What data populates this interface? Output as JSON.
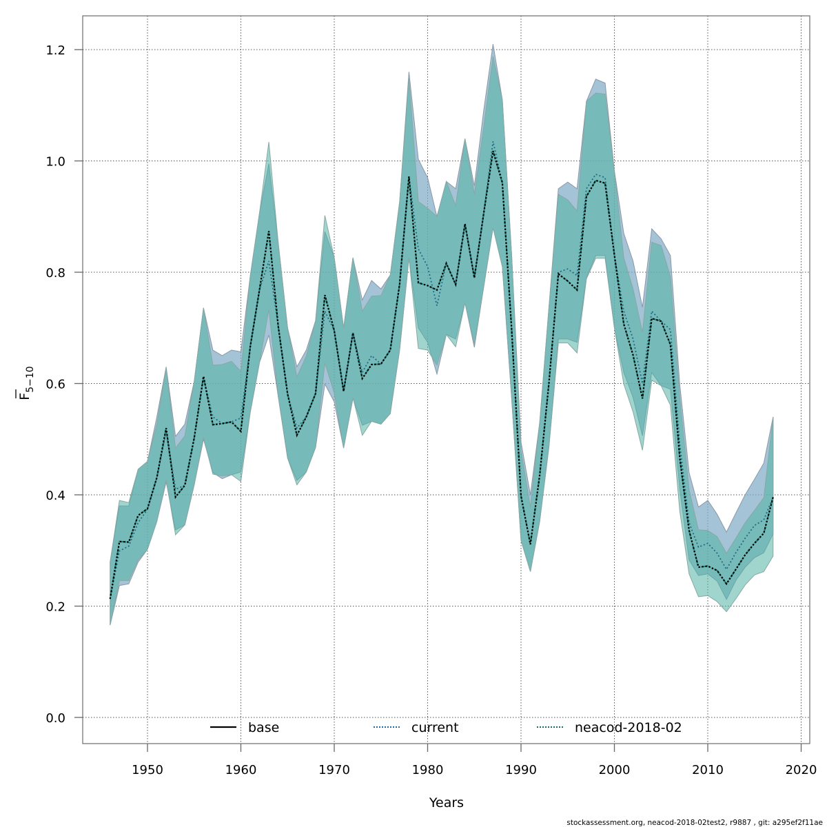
{
  "chart_data": {
    "type": "line",
    "title": "",
    "xlabel": "Years",
    "ylabel_main": "F",
    "ylabel_sub": "5−10",
    "xlim": [
      1943,
      2021
    ],
    "ylim": [
      -0.05,
      1.26
    ],
    "x_ticks": [
      1950,
      1960,
      1970,
      1980,
      1990,
      2000,
      2010,
      2020
    ],
    "x_tick_labels": [
      "1950",
      "1960",
      "1970",
      "1980",
      "1990",
      "2000",
      "2010",
      "2020"
    ],
    "y_ticks": [
      0.0,
      0.2,
      0.4,
      0.6,
      0.8,
      1.0,
      1.2
    ],
    "y_tick_labels": [
      "0.0",
      "0.2",
      "0.4",
      "0.6",
      "0.8",
      "1.0",
      "1.2"
    ],
    "grid": true,
    "legend_position": "bottom",
    "years": [
      1946,
      1947,
      1948,
      1949,
      1950,
      1951,
      1952,
      1953,
      1954,
      1955,
      1956,
      1957,
      1958,
      1959,
      1960,
      1961,
      1962,
      1963,
      1964,
      1965,
      1966,
      1967,
      1968,
      1969,
      1970,
      1971,
      1972,
      1973,
      1974,
      1975,
      1976,
      1977,
      1978,
      1979,
      1980,
      1981,
      1982,
      1983,
      1984,
      1985,
      1986,
      1987,
      1988,
      1989,
      1990,
      1991,
      1992,
      1993,
      1994,
      1995,
      1996,
      1997,
      1998,
      1999,
      2000,
      2001,
      2002,
      2003,
      2004,
      2005,
      2006,
      2007,
      2008,
      2009,
      2010,
      2011,
      2012,
      2013,
      2014,
      2015,
      2016,
      2017
    ],
    "series": [
      {
        "name": "base",
        "color": "#000000",
        "dash": "solid",
        "values": [
          0.213,
          0.316,
          0.315,
          0.363,
          0.375,
          0.431,
          0.52,
          0.396,
          0.417,
          0.502,
          0.613,
          0.526,
          0.528,
          0.531,
          0.514,
          0.666,
          0.769,
          0.874,
          0.703,
          0.581,
          0.507,
          0.54,
          0.582,
          0.759,
          0.695,
          0.586,
          0.691,
          0.609,
          0.634,
          0.635,
          0.66,
          0.779,
          0.972,
          0.781,
          0.776,
          0.768,
          0.816,
          0.778,
          0.887,
          0.79,
          0.905,
          1.018,
          0.961,
          0.695,
          0.398,
          0.311,
          0.435,
          0.602,
          0.797,
          0.784,
          0.768,
          0.936,
          0.965,
          0.96,
          0.831,
          0.707,
          0.651,
          0.573,
          0.717,
          0.712,
          0.67,
          0.466,
          0.336,
          0.27,
          0.272,
          0.264,
          0.24,
          0.266,
          0.292,
          0.313,
          0.331,
          0.396
        ],
        "lower": [
          0.166,
          0.246,
          0.246,
          0.283,
          0.302,
          0.352,
          0.427,
          0.328,
          0.346,
          0.418,
          0.503,
          0.437,
          0.434,
          0.436,
          0.424,
          0.548,
          0.638,
          0.733,
          0.577,
          0.466,
          0.418,
          0.441,
          0.485,
          0.637,
          0.583,
          0.484,
          0.575,
          0.507,
          0.532,
          0.527,
          0.546,
          0.66,
          0.826,
          0.663,
          0.66,
          0.633,
          0.688,
          0.666,
          0.745,
          0.67,
          0.773,
          0.88,
          0.81,
          0.572,
          0.318,
          0.262,
          0.352,
          0.487,
          0.673,
          0.673,
          0.655,
          0.788,
          0.825,
          0.825,
          0.7,
          0.599,
          0.549,
          0.48,
          0.606,
          0.596,
          0.561,
          0.37,
          0.258,
          0.217,
          0.219,
          0.208,
          0.19,
          0.213,
          0.238,
          0.256,
          0.262,
          0.29
        ],
        "upper": [
          0.279,
          0.39,
          0.386,
          0.446,
          0.46,
          0.527,
          0.628,
          0.484,
          0.506,
          0.604,
          0.736,
          0.633,
          0.634,
          0.64,
          0.622,
          0.793,
          0.907,
          1.034,
          0.853,
          0.7,
          0.612,
          0.649,
          0.713,
          0.902,
          0.826,
          0.7,
          0.826,
          0.73,
          0.757,
          0.758,
          0.795,
          0.927,
          1.148,
          0.927,
          0.915,
          0.9,
          0.963,
          0.92,
          1.04,
          0.94,
          1.06,
          1.188,
          1.11,
          0.829,
          0.48,
          0.378,
          0.53,
          0.738,
          0.94,
          0.93,
          0.91,
          1.107,
          1.122,
          1.12,
          0.982,
          0.826,
          0.77,
          0.692,
          0.854,
          0.848,
          0.792,
          0.575,
          0.409,
          0.337,
          0.336,
          0.325,
          0.295,
          0.322,
          0.35,
          0.372,
          0.395,
          0.54
        ]
      },
      {
        "name": "current",
        "color": "#1f6aa0",
        "dash": "dotted",
        "values": [
          0.213,
          0.299,
          0.308,
          0.35,
          0.374,
          0.431,
          0.514,
          0.41,
          0.417,
          0.502,
          0.61,
          0.54,
          0.528,
          0.531,
          0.538,
          0.666,
          0.769,
          0.82,
          0.703,
          0.581,
          0.52,
          0.54,
          0.582,
          0.73,
          0.695,
          0.586,
          0.691,
          0.62,
          0.65,
          0.635,
          0.66,
          0.779,
          0.972,
          0.842,
          0.81,
          0.74,
          0.816,
          0.778,
          0.887,
          0.79,
          0.905,
          1.035,
          0.961,
          0.695,
          0.398,
          0.311,
          0.435,
          0.602,
          0.8,
          0.806,
          0.794,
          0.95,
          0.976,
          0.97,
          0.831,
          0.73,
          0.68,
          0.6,
          0.73,
          0.712,
          0.697,
          0.49,
          0.35,
          0.306,
          0.313,
          0.295,
          0.266,
          0.296,
          0.322,
          0.345,
          0.355,
          0.396
        ],
        "lower": [
          0.166,
          0.237,
          0.24,
          0.279,
          0.302,
          0.352,
          0.423,
          0.337,
          0.346,
          0.418,
          0.5,
          0.44,
          0.429,
          0.436,
          0.441,
          0.548,
          0.638,
          0.687,
          0.577,
          0.466,
          0.426,
          0.441,
          0.485,
          0.599,
          0.567,
          0.484,
          0.573,
          0.525,
          0.532,
          0.527,
          0.546,
          0.66,
          0.826,
          0.7,
          0.674,
          0.617,
          0.688,
          0.68,
          0.745,
          0.665,
          0.773,
          0.88,
          0.81,
          0.572,
          0.318,
          0.262,
          0.352,
          0.487,
          0.68,
          0.68,
          0.674,
          0.79,
          0.83,
          0.83,
          0.7,
          0.62,
          0.575,
          0.506,
          0.62,
          0.596,
          0.59,
          0.41,
          0.283,
          0.255,
          0.258,
          0.245,
          0.212,
          0.246,
          0.27,
          0.287,
          0.296,
          0.33
        ],
        "upper": [
          0.28,
          0.38,
          0.38,
          0.446,
          0.46,
          0.54,
          0.63,
          0.505,
          0.527,
          0.604,
          0.736,
          0.66,
          0.65,
          0.66,
          0.657,
          0.793,
          0.907,
          0.995,
          0.853,
          0.7,
          0.63,
          0.66,
          0.713,
          0.873,
          0.826,
          0.7,
          0.826,
          0.75,
          0.785,
          0.77,
          0.795,
          0.927,
          1.16,
          1.003,
          0.97,
          0.9,
          0.963,
          0.95,
          1.04,
          0.955,
          1.09,
          1.21,
          1.11,
          0.829,
          0.495,
          0.4,
          0.53,
          0.738,
          0.95,
          0.962,
          0.95,
          1.107,
          1.147,
          1.14,
          0.982,
          0.87,
          0.82,
          0.737,
          0.878,
          0.86,
          0.83,
          0.598,
          0.44,
          0.378,
          0.39,
          0.365,
          0.333,
          0.367,
          0.4,
          0.428,
          0.457,
          0.54
        ]
      },
      {
        "name": "neacod-2018-02",
        "color": "#1a6a60",
        "dash": "dotted",
        "values": [
          0.213,
          0.316,
          0.315,
          0.363,
          0.375,
          0.431,
          0.52,
          0.396,
          0.417,
          0.502,
          0.613,
          0.526,
          0.528,
          0.531,
          0.514,
          0.666,
          0.769,
          0.874,
          0.703,
          0.581,
          0.507,
          0.54,
          0.582,
          0.759,
          0.695,
          0.586,
          0.691,
          0.609,
          0.634,
          0.635,
          0.66,
          0.779,
          0.972,
          0.781,
          0.776,
          0.768,
          0.816,
          0.778,
          0.887,
          0.79,
          0.905,
          1.018,
          0.961,
          0.695,
          0.398,
          0.311,
          0.435,
          0.602,
          0.797,
          0.784,
          0.768,
          0.936,
          0.965,
          0.96,
          0.831,
          0.707,
          0.651,
          0.573,
          0.717,
          0.712,
          0.67,
          0.466,
          0.336,
          0.27,
          0.272,
          0.264,
          0.24,
          0.266,
          0.292,
          0.313,
          0.331,
          0.396
        ]
      }
    ]
  },
  "legend": [
    {
      "label": "base",
      "color": "#000000",
      "style": "solid"
    },
    {
      "label": "current",
      "color": "#1f6aa0",
      "style": "dotted"
    },
    {
      "label": "neacod-2018-02",
      "color": "#1a6a60",
      "style": "dotted"
    }
  ],
  "footer": "stockassessment.org, neacod-2018-02test2, r9887 , git: a295ef2f11ae",
  "colors": {
    "band_current": "#7fa9c4",
    "band_base": "#52b3a4",
    "grid": "#555555",
    "frame": "#777777"
  }
}
